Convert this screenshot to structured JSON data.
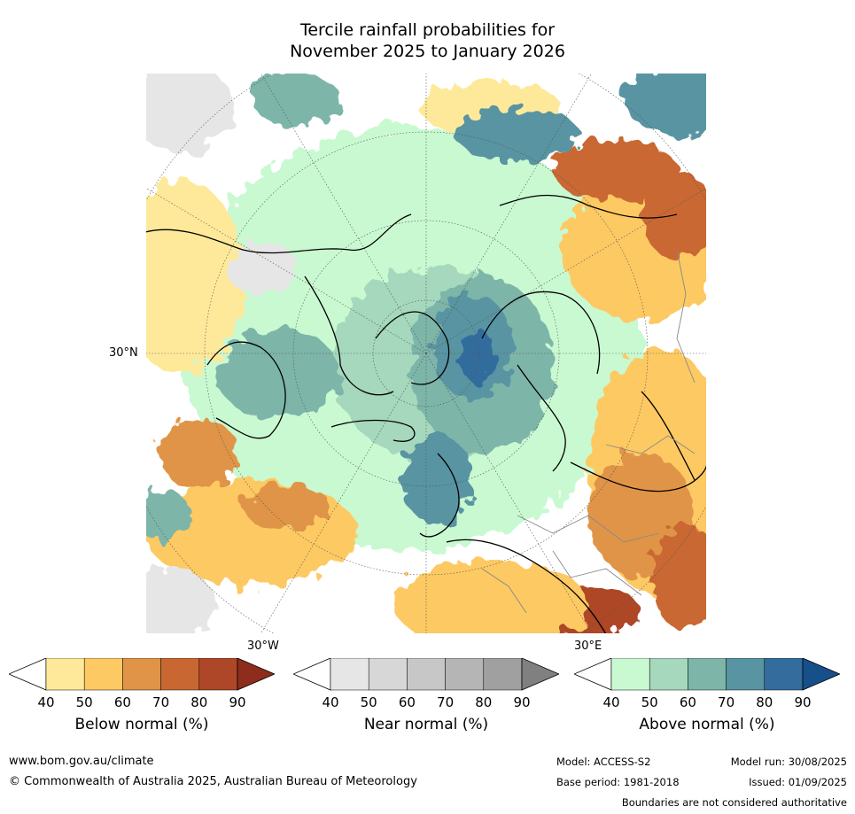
{
  "title": {
    "line1": "Tercile rainfall probabilities for",
    "line2": "November 2025 to January 2026"
  },
  "map": {
    "lat_label": "30°N",
    "lon_labels": {
      "west": "30°W",
      "east": "30°E"
    }
  },
  "colorbars": [
    {
      "name": "below-normal",
      "title": "Below normal (%)",
      "ticks": [
        "40",
        "50",
        "60",
        "70",
        "80",
        "90"
      ],
      "colors": [
        "#ffffff",
        "#fee99a",
        "#fdc963",
        "#e09447",
        "#c96733",
        "#ad4727",
        "#8e2d1c"
      ]
    },
    {
      "name": "near-normal",
      "title": "Near normal (%)",
      "ticks": [
        "40",
        "50",
        "60",
        "70",
        "80",
        "90"
      ],
      "colors": [
        "#ffffff",
        "#e6e6e6",
        "#d7d7d7",
        "#c7c7c7",
        "#b5b5b5",
        "#a0a0a0",
        "#808080"
      ]
    },
    {
      "name": "above-normal",
      "title": "Above normal (%)",
      "ticks": [
        "40",
        "50",
        "60",
        "70",
        "80",
        "90"
      ],
      "colors": [
        "#ffffff",
        "#c9f9d1",
        "#a5d8bc",
        "#7db5a9",
        "#5894a2",
        "#336c9d",
        "#174f8a"
      ]
    }
  ],
  "footer": {
    "website": "www.bom.gov.au/climate",
    "copyright": "© Commonwealth of Australia 2025, Australian Bureau of Meteorology",
    "model": "Model: ACCESS-S2",
    "base_period": "Base period: 1981-2018",
    "model_run": "Model run: 30/08/2025",
    "issued": "Issued: 01/09/2025",
    "disclaimer": "Boundaries are not considered authoritative"
  }
}
